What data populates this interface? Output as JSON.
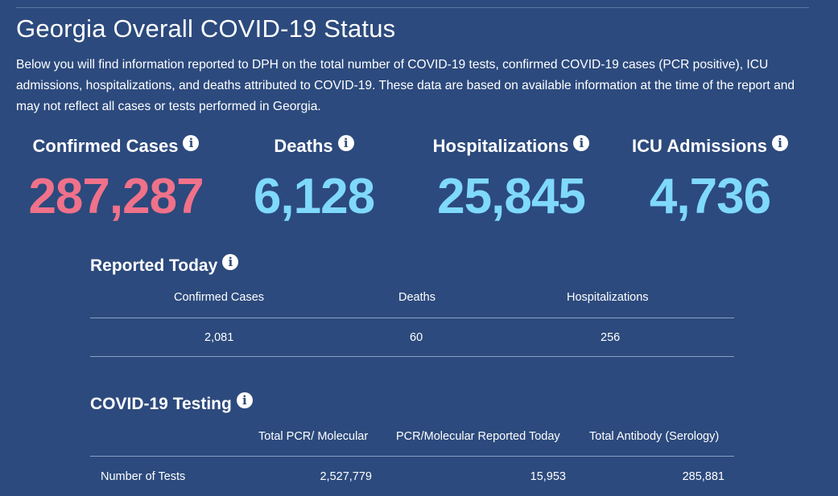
{
  "title": "Georgia Overall COVID-19 Status",
  "description": "Below you will find information reported to DPH on the total number of COVID-19 tests, confirmed COVID-19 cases (PCR positive), ICU admissions, hospitalizations, and deaths attributed to COVID-19. These data are based on available information at the time of the report and may not reflect all cases or tests performed in Georgia.",
  "info_icon_glyph": "i",
  "colors": {
    "background": "#2c4a7d",
    "cases_accent": "#f0718a",
    "stat_accent": "#7fd9fb"
  },
  "stats": [
    {
      "label": "Confirmed Cases",
      "value": "287,287",
      "color": "#f0718a"
    },
    {
      "label": "Deaths",
      "value": "6,128",
      "color": "#7fd9fb"
    },
    {
      "label": "Hospitalizations",
      "value": "25,845",
      "color": "#7fd9fb"
    },
    {
      "label": "ICU Admissions",
      "value": "4,736",
      "color": "#7fd9fb"
    }
  ],
  "reported_today": {
    "title": "Reported Today",
    "headers": [
      "Confirmed Cases",
      "Deaths",
      "Hospitalizations"
    ],
    "values": [
      "2,081",
      "60",
      "256"
    ]
  },
  "testing": {
    "title": "COVID-19 Testing",
    "headers": [
      "Total PCR/ Molecular",
      "PCR/Molecular Reported Today",
      "Total Antibody (Serology)"
    ],
    "row_label": "Number of Tests",
    "values": [
      "2,527,779",
      "15,953",
      "285,881"
    ]
  }
}
